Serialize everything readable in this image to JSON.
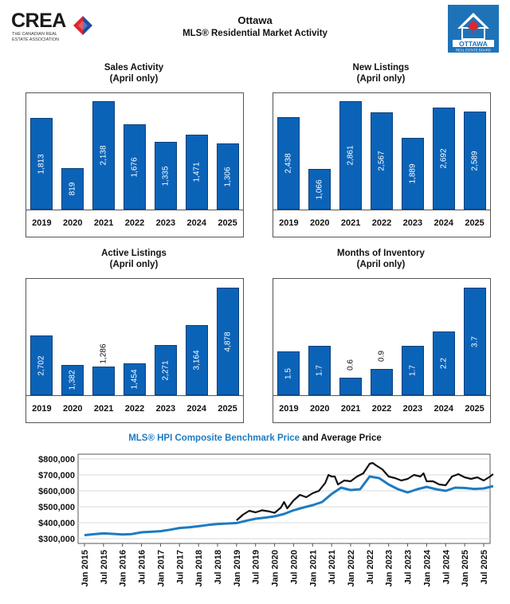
{
  "header": {
    "brand": "CREA",
    "brand_sub": "The Canadian Real Estate Association",
    "title": "Ottawa",
    "subtitle": "MLS® Residential Market Activity",
    "board_logo_name": "OTTAWA",
    "board_logo_sub": "REAL ESTATE BOARD"
  },
  "colors": {
    "bar": "#0b63b8",
    "hpi_line": "#1d7bc2",
    "avg_line": "#111111"
  },
  "chart_data": [
    {
      "id": "sales",
      "type": "bar",
      "title": "Sales Activity",
      "subtitle": "(April only)",
      "categories": [
        "2019",
        "2020",
        "2021",
        "2022",
        "2023",
        "2024",
        "2025"
      ],
      "values": [
        1813,
        819,
        2138,
        1676,
        1335,
        1471,
        1306
      ],
      "labels": [
        "1,813",
        "819",
        "2,138",
        "1,676",
        "1,335",
        "1,471",
        "1,306"
      ],
      "ymax": 2200
    },
    {
      "id": "newlistings",
      "type": "bar",
      "title": "New Listings",
      "subtitle": "(April only)",
      "categories": [
        "2019",
        "2020",
        "2021",
        "2022",
        "2023",
        "2024",
        "2025"
      ],
      "values": [
        2438,
        1066,
        2861,
        2567,
        1889,
        2692,
        2589
      ],
      "labels": [
        "2,438",
        "1,066",
        "2,861",
        "2,567",
        "1,889",
        "2,692",
        "2,589"
      ],
      "ymax": 2950
    },
    {
      "id": "active",
      "type": "bar",
      "title": "Active Listings",
      "subtitle": "(April only)",
      "categories": [
        "2019",
        "2020",
        "2021",
        "2022",
        "2023",
        "2024",
        "2025"
      ],
      "values": [
        2702,
        1382,
        1286,
        1454,
        2271,
        3164,
        4878
      ],
      "labels": [
        "2,702",
        "1,382",
        "1,286",
        "1,454",
        "2,271",
        "3,164",
        "4,878"
      ],
      "ymax": 5050
    },
    {
      "id": "moi",
      "type": "bar",
      "title": "Months of Inventory",
      "subtitle": "(April only)",
      "categories": [
        "2019",
        "2020",
        "2021",
        "2022",
        "2023",
        "2024",
        "2025"
      ],
      "values": [
        1.5,
        1.7,
        0.6,
        0.9,
        1.7,
        2.2,
        3.7
      ],
      "labels": [
        "1.5",
        "1.7",
        "0.6",
        "0.9",
        "1.7",
        "2.2",
        "3.7"
      ],
      "ymax": 3.85
    },
    {
      "id": "prices",
      "type": "line",
      "title_hpi": "MLS® HPI Composite Benchmark Price",
      "title_rest": "and Average Price",
      "ylim": [
        300000,
        800000
      ],
      "yticks": [
        300000,
        400000,
        500000,
        600000,
        700000,
        800000
      ],
      "ytick_labels": [
        "$300,000",
        "$400,000",
        "$500,000",
        "$600,000",
        "$700,000",
        "$800,000"
      ],
      "xtick_labels": [
        "Jan 2015",
        "Jul 2015",
        "Jan 2016",
        "Jul 2016",
        "Jan 2017",
        "Jul 2017",
        "Jan 2018",
        "Jul 2018",
        "Jan 2019",
        "Jul 2019",
        "Jan 2020",
        "Jul 2020",
        "Jan 2021",
        "Jul 2021",
        "Jan 2022",
        "Jul 2022",
        "Jan 2023",
        "Jul 2023",
        "Jan 2024",
        "Jul 2024",
        "Jan 2025",
        "Jul 2025"
      ],
      "series": [
        {
          "name": "MLS® HPI Composite Benchmark Price",
          "x": [
            0,
            3,
            6,
            9,
            12,
            15,
            18,
            21,
            24,
            27,
            30,
            33,
            36,
            39,
            42,
            45,
            48,
            51,
            54,
            57,
            60,
            63,
            66,
            69,
            72,
            75,
            78,
            81,
            84,
            87,
            90,
            93,
            96,
            99,
            102,
            105,
            108,
            111,
            114,
            117,
            120,
            123,
            126,
            129
          ],
          "values": [
            322000,
            328000,
            333000,
            330000,
            326000,
            329000,
            340000,
            343000,
            347000,
            356000,
            367000,
            371000,
            378000,
            386000,
            392000,
            395000,
            398000,
            412000,
            425000,
            432000,
            440000,
            455000,
            478000,
            495000,
            510000,
            530000,
            580000,
            620000,
            605000,
            610000,
            690000,
            680000,
            640000,
            610000,
            590000,
            610000,
            625000,
            610000,
            600000,
            620000,
            618000,
            612000,
            615000,
            630000
          ]
        },
        {
          "name": "Average Price",
          "x": [
            48,
            50,
            52,
            54,
            56,
            58,
            60,
            62,
            63,
            64,
            66,
            68,
            70,
            72,
            74,
            76,
            77,
            78,
            79,
            80,
            82,
            84,
            86,
            88,
            90,
            91,
            92,
            94,
            96,
            98,
            100,
            102,
            104,
            106,
            107,
            108,
            110,
            112,
            114,
            116,
            118,
            120,
            122,
            124,
            126,
            128,
            129
          ],
          "values": [
            415000,
            450000,
            475000,
            465000,
            478000,
            472000,
            462000,
            495000,
            530000,
            490000,
            540000,
            575000,
            560000,
            585000,
            600000,
            650000,
            700000,
            690000,
            690000,
            640000,
            665000,
            660000,
            690000,
            710000,
            770000,
            775000,
            760000,
            735000,
            690000,
            680000,
            665000,
            675000,
            700000,
            690000,
            710000,
            660000,
            660000,
            640000,
            635000,
            690000,
            705000,
            685000,
            675000,
            685000,
            665000,
            690000,
            705000
          ]
        }
      ]
    }
  ]
}
